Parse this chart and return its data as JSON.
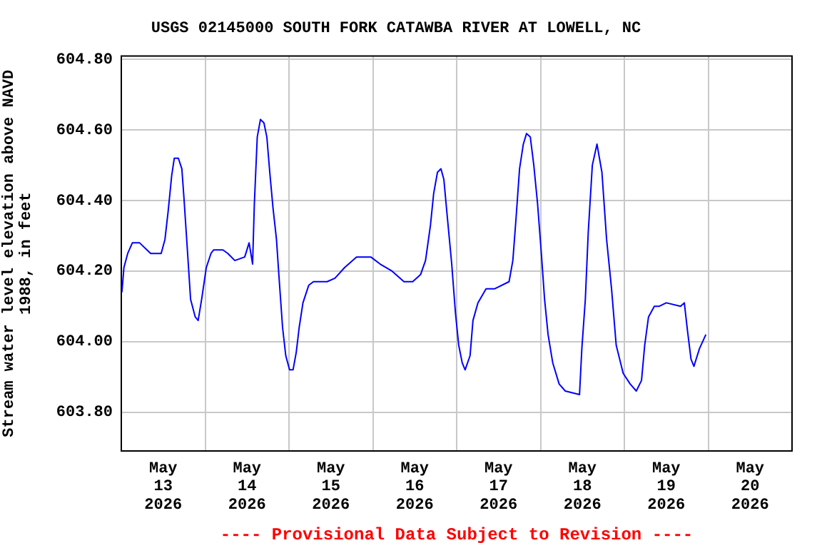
{
  "chart_data": {
    "type": "line",
    "title": "USGS 02145000 SOUTH FORK CATAWBA RIVER AT LOWELL, NC",
    "ylabel": "Stream water level elevation above NAVD 1988, in feet",
    "annotations": [
      "---- Provisional Data Subject to Revision ----"
    ],
    "x": [
      "2026-05-13T00:10",
      "2026-05-13T00:45",
      "2026-05-13T01:50",
      "2026-05-13T03:10",
      "2026-05-13T05:15",
      "2026-05-13T07:20",
      "2026-05-13T08:25",
      "2026-05-13T11:25",
      "2026-05-13T12:30",
      "2026-05-13T13:25",
      "2026-05-13T14:25",
      "2026-05-13T15:10",
      "2026-05-13T16:20",
      "2026-05-13T17:20",
      "2026-05-13T17:55",
      "2026-05-13T18:55",
      "2026-05-13T19:50",
      "2026-05-13T21:10",
      "2026-05-13T22:00",
      "2026-05-13T23:00",
      "2026-05-14T00:20",
      "2026-05-14T01:40",
      "2026-05-14T02:25",
      "2026-05-14T05:05",
      "2026-05-14T06:30",
      "2026-05-14T08:30",
      "2026-05-14T11:20",
      "2026-05-14T12:35",
      "2026-05-14T13:35",
      "2026-05-14T14:05",
      "2026-05-14T14:55",
      "2026-05-14T15:50",
      "2026-05-14T16:50",
      "2026-05-14T17:40",
      "2026-05-14T18:30",
      "2026-05-14T19:25",
      "2026-05-14T20:25",
      "2026-05-14T21:10",
      "2026-05-14T22:10",
      "2026-05-14T23:05",
      "2026-05-15T00:10",
      "2026-05-15T01:10",
      "2026-05-15T02:05",
      "2026-05-15T02:55",
      "2026-05-15T04:00",
      "2026-05-15T05:40",
      "2026-05-15T07:00",
      "2026-05-15T10:55",
      "2026-05-15T13:10",
      "2026-05-15T15:55",
      "2026-05-15T19:20",
      "2026-05-15T23:25",
      "2026-05-16T02:05",
      "2026-05-16T05:30",
      "2026-05-16T08:55",
      "2026-05-16T11:25",
      "2026-05-16T13:40",
      "2026-05-16T15:05",
      "2026-05-16T16:30",
      "2026-05-16T17:25",
      "2026-05-16T18:30",
      "2026-05-16T19:30",
      "2026-05-16T20:20",
      "2026-05-16T21:10",
      "2026-05-16T22:35",
      "2026-05-16T23:40",
      "2026-05-17T00:35",
      "2026-05-17T01:35",
      "2026-05-17T02:25",
      "2026-05-17T03:50",
      "2026-05-17T04:40",
      "2026-05-17T06:05",
      "2026-05-17T08:25",
      "2026-05-17T10:55",
      "2026-05-17T15:00",
      "2026-05-17T16:05",
      "2026-05-17T17:00",
      "2026-05-17T18:00",
      "2026-05-17T19:05",
      "2026-05-17T20:00",
      "2026-05-17T21:05",
      "2026-05-17T22:05",
      "2026-05-17T23:10",
      "2026-05-18T00:10",
      "2026-05-18T01:10",
      "2026-05-18T02:10",
      "2026-05-18T03:30",
      "2026-05-18T05:20",
      "2026-05-18T07:05",
      "2026-05-18T11:10",
      "2026-05-18T11:50",
      "2026-05-18T12:50",
      "2026-05-18T13:40",
      "2026-05-18T14:50",
      "2026-05-18T16:10",
      "2026-05-18T17:35",
      "2026-05-18T18:55",
      "2026-05-18T20:20",
      "2026-05-18T21:40",
      "2026-05-18T23:40",
      "2026-05-19T01:40",
      "2026-05-19T03:25",
      "2026-05-19T04:55",
      "2026-05-19T05:50",
      "2026-05-19T06:55",
      "2026-05-19T08:35",
      "2026-05-19T09:55",
      "2026-05-19T12:00",
      "2026-05-19T16:05",
      "2026-05-19T17:10",
      "2026-05-19T18:05",
      "2026-05-19T19:05",
      "2026-05-19T19:55",
      "2026-05-19T21:30",
      "2026-05-19T23:20"
    ],
    "series": [
      {
        "color": "#0000ff",
        "values": [
          604.14,
          604.21,
          604.25,
          604.28,
          604.28,
          604.26,
          604.25,
          604.25,
          604.29,
          604.37,
          604.47,
          604.52,
          604.52,
          604.49,
          604.41,
          604.26,
          604.12,
          604.07,
          604.06,
          604.12,
          604.21,
          604.25,
          604.26,
          604.26,
          604.25,
          604.23,
          604.24,
          604.28,
          604.22,
          604.39,
          604.58,
          604.63,
          604.62,
          604.58,
          604.48,
          604.38,
          604.29,
          604.18,
          604.04,
          603.96,
          603.92,
          603.92,
          603.97,
          604.04,
          604.11,
          604.16,
          604.17,
          604.17,
          604.18,
          604.21,
          604.24,
          604.24,
          604.22,
          604.2,
          604.17,
          604.17,
          604.19,
          604.23,
          604.33,
          604.42,
          604.48,
          604.49,
          604.46,
          604.37,
          604.22,
          604.08,
          603.99,
          603.94,
          603.92,
          603.96,
          604.06,
          604.11,
          604.15,
          604.15,
          604.17,
          604.23,
          604.35,
          604.49,
          604.56,
          604.59,
          604.58,
          604.5,
          604.39,
          604.26,
          604.12,
          604.02,
          603.94,
          603.88,
          603.86,
          603.85,
          603.98,
          604.12,
          604.31,
          604.5,
          604.56,
          604.48,
          604.29,
          604.15,
          603.99,
          603.91,
          603.88,
          603.86,
          603.89,
          603.99,
          604.07,
          604.1,
          604.1,
          604.11,
          604.1,
          604.11,
          604.03,
          603.95,
          603.93,
          603.98,
          604.02
        ]
      }
    ],
    "xlim": [
      "2026-05-13T00:00",
      "2026-05-21T00:00"
    ],
    "xticks": [
      {
        "value": "2026-05-13T12:00",
        "label": "May\n13\n2026"
      },
      {
        "value": "2026-05-14T00:00",
        "label": null
      },
      {
        "value": "2026-05-14T12:00",
        "label": "May\n14\n2026"
      },
      {
        "value": "2026-05-15T00:00",
        "label": null
      },
      {
        "value": "2026-05-15T12:00",
        "label": "May\n15\n2026"
      },
      {
        "value": "2026-05-16T00:00",
        "label": null
      },
      {
        "value": "2026-05-16T12:00",
        "label": "May\n16\n2026"
      },
      {
        "value": "2026-05-17T00:00",
        "label": null
      },
      {
        "value": "2026-05-17T12:00",
        "label": "May\n17\n2026"
      },
      {
        "value": "2026-05-18T00:00",
        "label": null
      },
      {
        "value": "2026-05-18T12:00",
        "label": "May\n18\n2026"
      },
      {
        "value": "2026-05-19T00:00",
        "label": null
      },
      {
        "value": "2026-05-19T12:00",
        "label": "May\n19\n2026"
      },
      {
        "value": "2026-05-20T00:00",
        "label": null
      },
      {
        "value": "2026-05-20T12:00",
        "label": "May\n20\n2026"
      }
    ],
    "ylim": [
      603.69,
      604.81
    ],
    "yticks": [
      {
        "value": 603.8,
        "label": "603.80"
      },
      {
        "value": 604.0,
        "label": "604.00"
      },
      {
        "value": 604.2,
        "label": "604.20"
      },
      {
        "value": 604.4,
        "label": "604.40"
      },
      {
        "value": 604.6,
        "label": "604.60"
      },
      {
        "value": 604.8,
        "label": "604.80"
      }
    ],
    "grid": true,
    "marker": "none"
  }
}
